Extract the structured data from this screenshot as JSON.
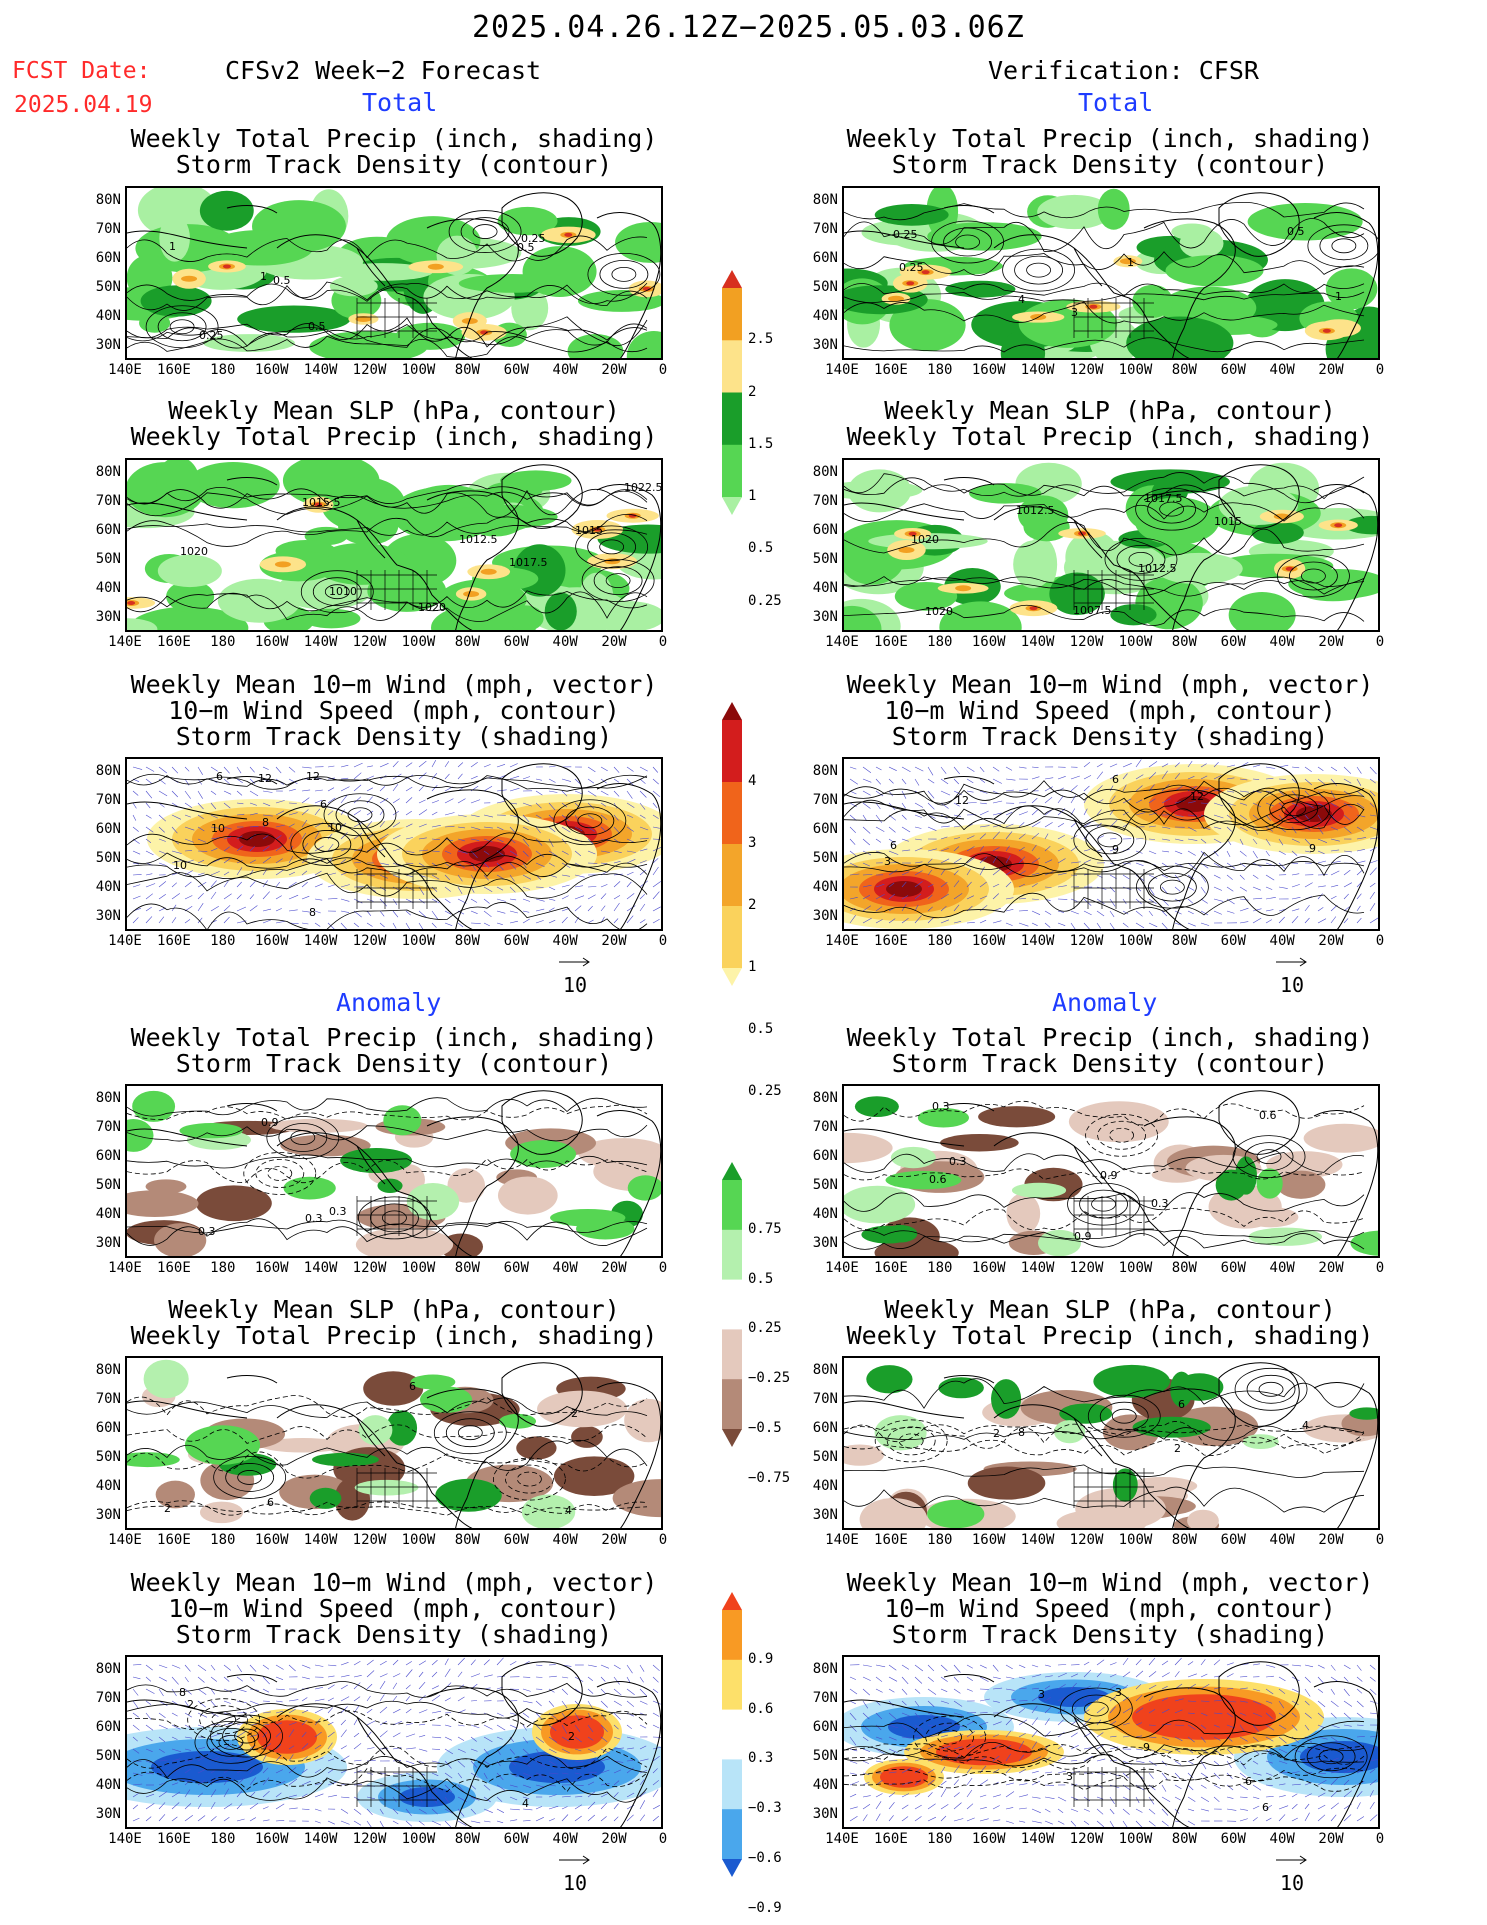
{
  "header": {
    "period": "2025.04.26.12Z−2025.05.03.06Z",
    "fcst_date_label": "FCST Date:",
    "fcst_date_value": "2025.04.19",
    "left_title": "CFSv2 Week−2 Forecast",
    "right_title": "Verification: CFSR",
    "total_label_left": "Total",
    "total_label_right": "Total",
    "anomaly_label_left": "Anomaly",
    "anomaly_label_right": "Anomaly"
  },
  "panel_titles": {
    "precip_storm": [
      "Weekly Total Precip (inch, shading)",
      "Storm Track Density (contour)"
    ],
    "slp_precip": [
      "Weekly Mean SLP (hPa, contour)",
      "Weekly Total Precip (inch, shading)"
    ],
    "wind_storm": [
      "Weekly Mean 10−m Wind (mph, vector)",
      "10−m Wind Speed (mph, contour)",
      "Storm Track Density (shading)"
    ]
  },
  "axes": {
    "lat_labels": [
      "80N",
      "70N",
      "60N",
      "50N",
      "40N",
      "30N"
    ],
    "lon_labels": [
      "140E",
      "160E",
      "180",
      "160W",
      "140W",
      "120W",
      "100W",
      "80W",
      "60W",
      "40W",
      "20W",
      "0"
    ]
  },
  "vector_ref": "10",
  "colorbars": {
    "total_precip": {
      "labels": [
        "2.5",
        "2",
        "1.5",
        "1",
        "0.5",
        "0.25"
      ],
      "colors": [
        "#d7301f",
        "#f2a022",
        "#fde38a",
        "#1a9e2a",
        "#56d653",
        "#a9f0a2"
      ]
    },
    "total_storm": {
      "labels": [
        "4",
        "3",
        "2",
        "1",
        "0.5",
        "0.25"
      ],
      "colors": [
        "#8b0a0a",
        "#d31d1d",
        "#f0641b",
        "#f3a52a",
        "#fad25c",
        "#fdf3a8"
      ]
    },
    "anom_precip": {
      "labels": [
        "0.75",
        "0.5",
        "0.25",
        "−0.25",
        "−0.5",
        "−0.75"
      ],
      "colors": [
        "#1a9e2a",
        "#56d653",
        "#b4f0ae",
        "#ffffff",
        "#e4c9bd",
        "#b48a78",
        "#7a4b3a"
      ]
    },
    "anom_storm": {
      "labels": [
        "0.9",
        "0.6",
        "0.3",
        "−0.3",
        "−0.6",
        "−0.9"
      ],
      "colors": [
        "#f0421c",
        "#f89a24",
        "#fde06a",
        "#ffffff",
        "#b8e4f8",
        "#4aa7ec",
        "#1a5ad0"
      ]
    }
  },
  "panel_annotations": {
    "p1": [
      "0.5",
      "0.25",
      "1",
      "0.25",
      "0.5",
      "0.5",
      "1"
    ],
    "p2": [
      "0.5",
      "0.25",
      "1",
      "3",
      "4",
      "1",
      "0.25"
    ],
    "p3": [
      "1022.5",
      "1015.5",
      "1020",
      "1017.5",
      "1010",
      "1012.5",
      "1015",
      "1020"
    ],
    "p4": [
      "1020",
      "1017.5",
      "1012.5",
      "1020",
      "1007.5",
      "1012.5",
      "1015"
    ],
    "p5": [
      "10",
      "12",
      "6",
      "8",
      "6",
      "10",
      "12",
      "8",
      "10"
    ],
    "p6": [
      "12",
      "6",
      "9",
      "3",
      "9",
      "12",
      "6"
    ],
    "p7": [
      "0.3",
      "0.3",
      "0.9",
      "0.3"
    ],
    "p8": [
      "0.3",
      "0.9",
      "0.6",
      "0.3",
      "0.9",
      "0.6",
      "0.3"
    ],
    "p9": [
      "2",
      "6",
      "2",
      "6",
      "4"
    ],
    "p10": [
      "2",
      "6",
      "4",
      "8",
      "2"
    ],
    "p11": [
      "4",
      "2",
      "8",
      "2"
    ],
    "p12": [
      "3",
      "9",
      "6",
      "3",
      "6",
      "3"
    ]
  }
}
